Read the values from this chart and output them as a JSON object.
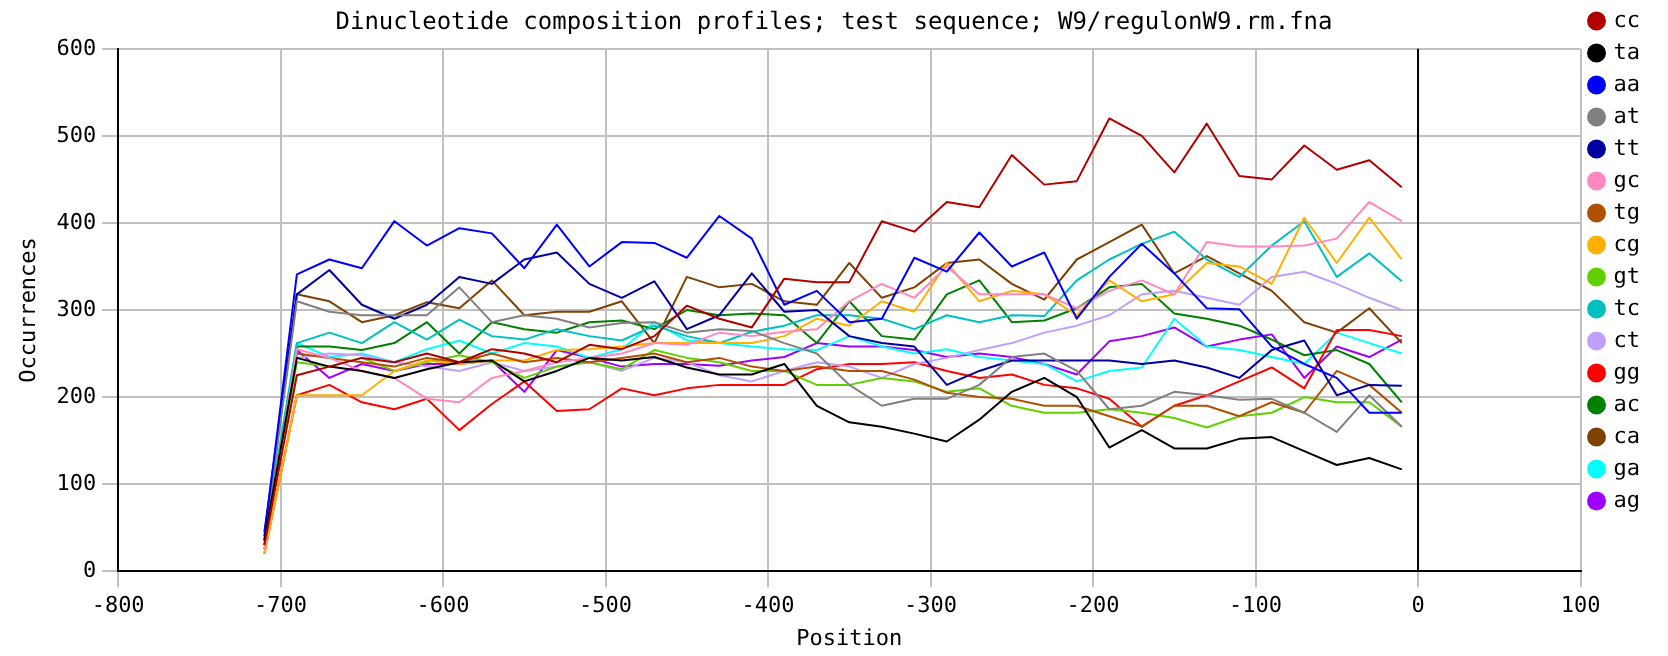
{
  "chart_data": {
    "type": "line",
    "title": "Dinucleotide composition profiles; test sequence; W9/regulonW9.rm.fna",
    "xlabel": "Position",
    "ylabel": "Occurrences",
    "x": [
      -710,
      -690,
      -670,
      -650,
      -630,
      -610,
      -590,
      -570,
      -550,
      -530,
      -510,
      -490,
      -470,
      -450,
      -430,
      -410,
      -390,
      -370,
      -350,
      -330,
      -310,
      -290,
      -270,
      -250,
      -230,
      -210,
      -190,
      -170,
      -150,
      -130,
      -110,
      -90,
      -70,
      -50,
      -30,
      -10
    ],
    "series": [
      {
        "name": "cc",
        "color": "#b00000",
        "values": [
          30,
          225,
          235,
          245,
          240,
          250,
          240,
          255,
          250,
          240,
          260,
          255,
          270,
          305,
          290,
          280,
          336,
          332,
          332,
          402,
          390,
          424,
          418,
          478,
          444,
          448,
          520,
          500,
          458,
          514,
          454,
          450,
          489,
          461,
          472,
          441
        ]
      },
      {
        "name": "ta",
        "color": "#000000",
        "values": [
          35,
          245,
          235,
          230,
          222,
          232,
          240,
          242,
          218,
          230,
          245,
          242,
          246,
          234,
          226,
          226,
          238,
          190,
          171,
          166,
          158,
          149,
          174,
          206,
          222,
          200,
          142,
          162,
          141,
          141,
          152,
          154,
          138,
          122,
          130,
          117
        ]
      },
      {
        "name": "aa",
        "color": "#0000ff",
        "values": [
          40,
          341,
          358,
          348,
          402,
          374,
          394,
          388,
          348,
          398,
          350,
          378,
          377,
          360,
          408,
          382,
          306,
          322,
          286,
          290,
          360,
          344,
          389,
          350,
          366,
          290,
          338,
          376,
          342,
          302,
          301,
          258,
          238,
          222,
          182,
          182
        ]
      },
      {
        "name": "at",
        "color": "#808080",
        "values": [
          35,
          310,
          298,
          294,
          294,
          294,
          326,
          286,
          294,
          290,
          280,
          285,
          286,
          274,
          278,
          276,
          262,
          250,
          214,
          190,
          198,
          198,
          214,
          246,
          250,
          230,
          186,
          190,
          206,
          202,
          197,
          198,
          182,
          160,
          202,
          166
        ]
      },
      {
        "name": "tt",
        "color": "#0000a0",
        "values": [
          45,
          318,
          346,
          306,
          290,
          306,
          338,
          330,
          358,
          366,
          330,
          314,
          333,
          278,
          294,
          342,
          298,
          300,
          270,
          262,
          258,
          214,
          230,
          242,
          242,
          242,
          242,
          238,
          242,
          234,
          222,
          254,
          265,
          202,
          214,
          213
        ]
      },
      {
        "name": "gc",
        "color": "#ff88c0",
        "values": [
          25,
          255,
          245,
          230,
          222,
          198,
          194,
          222,
          230,
          240,
          245,
          250,
          262,
          260,
          274,
          270,
          275,
          278,
          310,
          330,
          314,
          350,
          318,
          318,
          318,
          302,
          322,
          334,
          318,
          378,
          373,
          373,
          374,
          382,
          424,
          402
        ]
      },
      {
        "name": "tg",
        "color": "#b05000",
        "values": [
          30,
          250,
          245,
          240,
          235,
          245,
          240,
          250,
          240,
          245,
          240,
          245,
          250,
          240,
          245,
          235,
          230,
          235,
          230,
          230,
          220,
          205,
          200,
          198,
          190,
          190,
          178,
          166,
          190,
          190,
          178,
          194,
          182,
          230,
          214,
          182
        ]
      },
      {
        "name": "cg",
        "color": "#ffb000",
        "values": [
          20,
          202,
          202,
          202,
          230,
          242,
          238,
          242,
          242,
          254,
          255,
          258,
          262,
          262,
          262,
          262,
          270,
          290,
          282,
          310,
          298,
          354,
          310,
          322,
          318,
          294,
          334,
          310,
          318,
          354,
          350,
          330,
          406,
          354,
          406,
          358
        ]
      },
      {
        "name": "gt",
        "color": "#60d000",
        "values": [
          30,
          240,
          235,
          245,
          230,
          240,
          248,
          240,
          222,
          235,
          240,
          232,
          254,
          245,
          240,
          230,
          230,
          214,
          214,
          222,
          218,
          206,
          210,
          190,
          182,
          182,
          186,
          182,
          176,
          165,
          178,
          182,
          200,
          194,
          194,
          166
        ]
      },
      {
        "name": "tc",
        "color": "#00c0c0",
        "values": [
          35,
          262,
          274,
          262,
          286,
          266,
          289,
          270,
          266,
          278,
          270,
          265,
          282,
          270,
          262,
          275,
          282,
          294,
          294,
          290,
          278,
          294,
          286,
          294,
          293,
          334,
          358,
          376,
          390,
          358,
          338,
          374,
          402,
          338,
          365,
          333
        ]
      },
      {
        "name": "ct",
        "color": "#c0a0ff",
        "values": [
          30,
          245,
          250,
          248,
          240,
          235,
          230,
          240,
          230,
          235,
          240,
          230,
          245,
          240,
          225,
          218,
          230,
          240,
          235,
          222,
          238,
          245,
          254,
          262,
          274,
          282,
          294,
          318,
          322,
          314,
          306,
          338,
          344,
          330,
          314,
          300
        ]
      },
      {
        "name": "gg",
        "color": "#ff0000",
        "values": [
          20,
          202,
          214,
          194,
          186,
          198,
          162,
          192,
          218,
          184,
          186,
          210,
          202,
          210,
          214,
          214,
          214,
          232,
          238,
          238,
          240,
          230,
          222,
          226,
          214,
          210,
          198,
          166,
          190,
          202,
          218,
          234,
          210,
          277,
          277,
          270
        ]
      },
      {
        "name": "ac",
        "color": "#008000",
        "values": [
          30,
          258,
          258,
          254,
          262,
          286,
          250,
          286,
          278,
          274,
          286,
          288,
          278,
          300,
          294,
          296,
          294,
          262,
          310,
          270,
          266,
          318,
          334,
          286,
          288,
          302,
          326,
          330,
          296,
          290,
          282,
          266,
          248,
          254,
          238,
          194
        ]
      },
      {
        "name": "ca",
        "color": "#804000",
        "values": [
          35,
          318,
          310,
          286,
          294,
          309,
          302,
          334,
          294,
          298,
          298,
          310,
          262,
          338,
          326,
          330,
          310,
          306,
          354,
          314,
          326,
          354,
          358,
          330,
          312,
          358,
          378,
          398,
          342,
          362,
          342,
          322,
          286,
          274,
          302,
          262
        ]
      },
      {
        "name": "ga",
        "color": "#00ffff",
        "values": [
          40,
          262,
          246,
          250,
          240,
          255,
          265,
          250,
          262,
          258,
          245,
          255,
          286,
          265,
          262,
          258,
          255,
          254,
          270,
          258,
          250,
          255,
          246,
          242,
          238,
          218,
          230,
          234,
          290,
          258,
          254,
          246,
          238,
          274,
          262,
          250
        ]
      },
      {
        "name": "ag",
        "color": "#a000ff",
        "values": [
          25,
          254,
          222,
          238,
          230,
          238,
          238,
          242,
          206,
          254,
          245,
          235,
          238,
          238,
          236,
          242,
          246,
          262,
          258,
          258,
          254,
          246,
          250,
          246,
          238,
          226,
          264,
          270,
          280,
          258,
          266,
          272,
          222,
          258,
          246,
          266
        ]
      }
    ],
    "xlim": [
      -800,
      100
    ],
    "xticks": [
      -800,
      -700,
      -600,
      -500,
      -400,
      -300,
      -200,
      -100,
      0,
      100
    ],
    "ylim": [
      0,
      600
    ],
    "yticks": [
      0,
      100,
      200,
      300,
      400,
      500,
      600
    ],
    "ref_lines": [
      {
        "axis": "x",
        "value": 0,
        "color": "#000000"
      }
    ],
    "grid": true,
    "legend": "right",
    "marker": "none",
    "line_style": "solid"
  }
}
